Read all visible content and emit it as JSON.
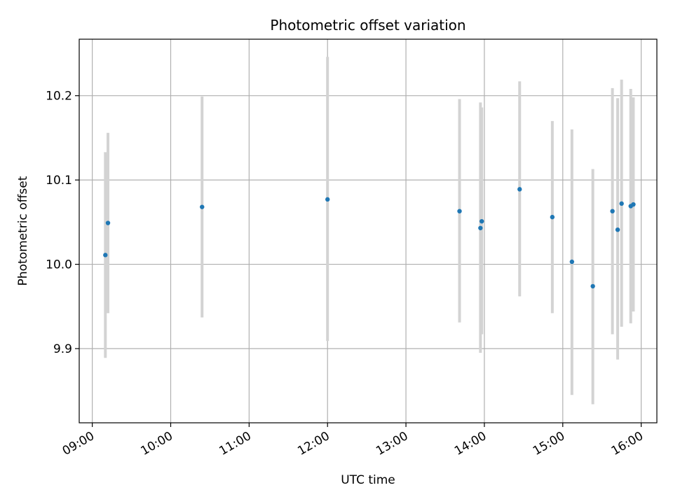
{
  "chart_data": {
    "type": "scatter",
    "title": "Photometric offset variation",
    "xlabel": "UTC time",
    "ylabel": "Photometric offset",
    "x_axis": {
      "kind": "time",
      "range": [
        "08:50",
        "16:12"
      ],
      "ticks": [
        "09:00",
        "10:00",
        "11:00",
        "12:00",
        "13:00",
        "14:00",
        "15:00",
        "16:00"
      ]
    },
    "y_axis": {
      "range": [
        9.812,
        10.267
      ],
      "ticks": [
        9.9,
        10.0,
        10.1,
        10.2
      ],
      "tick_labels": [
        "9.9",
        "10.0",
        "10.1",
        "10.2"
      ]
    },
    "grid": true,
    "legend": "none",
    "colors": {
      "point": "#1f77b4",
      "errorbar": "#d3d3d3",
      "grid": "#b0b0b0"
    },
    "points": [
      {
        "time": "09:10",
        "y": 10.011,
        "err_low": 9.889,
        "err_high": 10.133
      },
      {
        "time": "09:12",
        "y": 10.049,
        "err_low": 9.942,
        "err_high": 10.156
      },
      {
        "time": "10:24",
        "y": 10.068,
        "err_low": 9.937,
        "err_high": 10.199
      },
      {
        "time": "12:00",
        "y": 10.077,
        "err_low": 9.909,
        "err_high": 10.246
      },
      {
        "time": "13:41",
        "y": 10.063,
        "err_low": 9.931,
        "err_high": 10.196
      },
      {
        "time": "13:57",
        "y": 10.043,
        "err_low": 9.895,
        "err_high": 10.192
      },
      {
        "time": "13:58",
        "y": 10.051,
        "err_low": 9.917,
        "err_high": 10.186
      },
      {
        "time": "14:27",
        "y": 10.089,
        "err_low": 9.962,
        "err_high": 10.217
      },
      {
        "time": "14:52",
        "y": 10.056,
        "err_low": 9.942,
        "err_high": 10.17
      },
      {
        "time": "15:07",
        "y": 10.003,
        "err_low": 9.845,
        "err_high": 10.16
      },
      {
        "time": "15:23",
        "y": 9.974,
        "err_low": 9.834,
        "err_high": 10.113
      },
      {
        "time": "15:38",
        "y": 10.063,
        "err_low": 9.917,
        "err_high": 10.209
      },
      {
        "time": "15:42",
        "y": 10.041,
        "err_low": 9.887,
        "err_high": 10.197
      },
      {
        "time": "15:45",
        "y": 10.072,
        "err_low": 9.926,
        "err_high": 10.219
      },
      {
        "time": "15:52",
        "y": 10.069,
        "err_low": 9.93,
        "err_high": 10.208
      },
      {
        "time": "15:54",
        "y": 10.071,
        "err_low": 9.944,
        "err_high": 10.198
      }
    ]
  }
}
